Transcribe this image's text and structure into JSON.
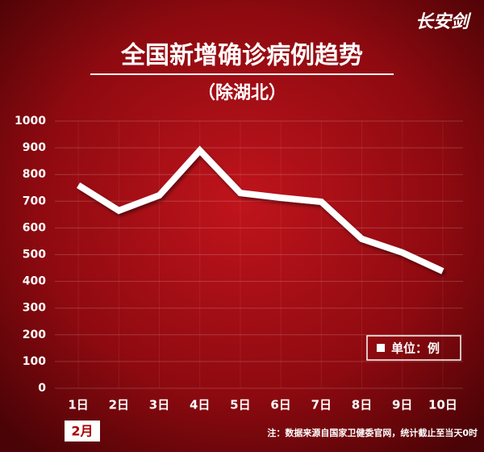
{
  "logo": "长安剑",
  "chart_data": {
    "type": "line",
    "title": "全国新增确诊病例趋势",
    "subtitle": "（除湖北）",
    "categories": [
      "1日",
      "2日",
      "3日",
      "4日",
      "5日",
      "6日",
      "7日",
      "8日",
      "9日",
      "10日"
    ],
    "x_label": "2月",
    "series": [
      {
        "name": "单位：例",
        "color": "#ffffff",
        "values": [
          760,
          665,
          722,
          890,
          731,
          713,
          698,
          559,
          508,
          438
        ]
      }
    ],
    "ylim": [
      0,
      1000
    ],
    "yticks": [
      0,
      100,
      200,
      300,
      400,
      500,
      600,
      700,
      800,
      900,
      1000
    ],
    "grid": true,
    "legend": "lower-right",
    "footnote": "注：数据来源自国家卫健委官网，统计截止至当天0时"
  }
}
